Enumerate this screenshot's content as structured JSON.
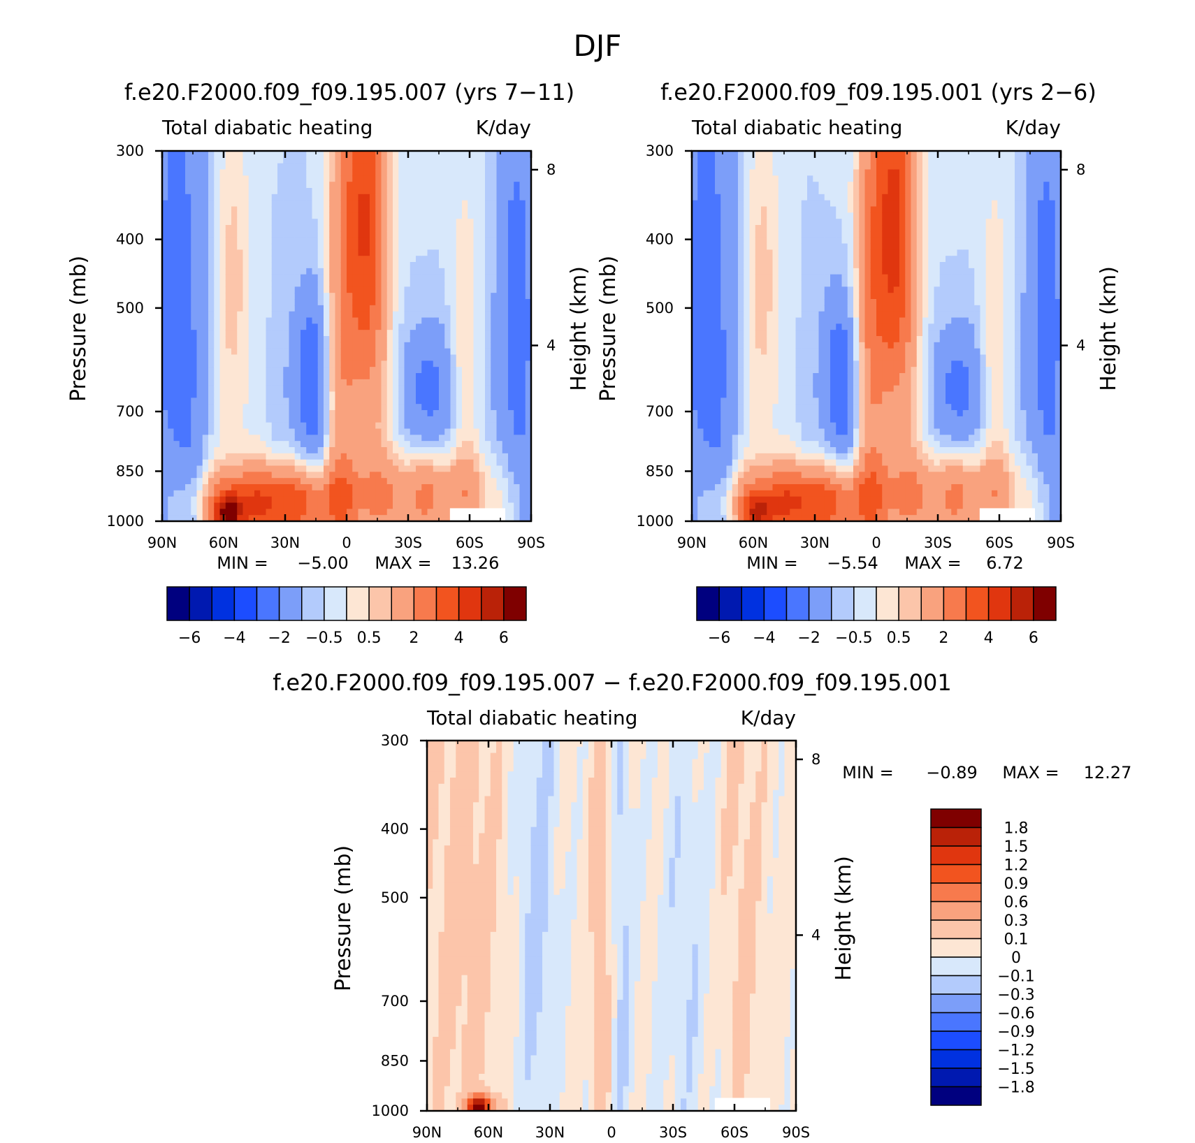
{
  "figure_title": "DJF",
  "chart_data": [
    {
      "type": "heatmap",
      "panel_title": "f.e20.F2000.f09_f09.195.007 (yrs 7−11)",
      "variable_label": "Total diabatic heating",
      "units_label": "K/day",
      "ylabel": "Pressure (mb)",
      "y2label": "Height (km)",
      "x_ticks": [
        "90N",
        "60N",
        "30N",
        "0",
        "30S",
        "60S",
        "90S"
      ],
      "x_values": [
        90,
        60,
        30,
        0,
        -30,
        -60,
        -90
      ],
      "y_ticks": [
        300,
        400,
        500,
        700,
        850,
        1000
      ],
      "y2_ticks": [
        8,
        4
      ],
      "ylim": [
        1000,
        300
      ],
      "min_label": "MIN =",
      "min_value": "−5.00",
      "max_label": "MAX =",
      "max_value": "13.26",
      "colorbar_orientation": "horizontal",
      "colorbar_labels": [
        "−6",
        "−4",
        "−2",
        "−0.5",
        "0.5",
        "2",
        "4",
        "6"
      ],
      "levels": [
        -6,
        -5,
        -4,
        -3,
        -2,
        -1,
        -0.5,
        0,
        0.5,
        1,
        2,
        3,
        4,
        5,
        6
      ]
    },
    {
      "type": "heatmap",
      "panel_title": "f.e20.F2000.f09_f09.195.001 (yrs 2−6)",
      "variable_label": "Total diabatic heating",
      "units_label": "K/day",
      "ylabel": "Pressure (mb)",
      "y2label": "Height (km)",
      "x_ticks": [
        "90N",
        "60N",
        "30N",
        "0",
        "30S",
        "60S",
        "90S"
      ],
      "x_values": [
        90,
        60,
        30,
        0,
        -30,
        -60,
        -90
      ],
      "y_ticks": [
        300,
        400,
        500,
        700,
        850,
        1000
      ],
      "y2_ticks": [
        8,
        4
      ],
      "ylim": [
        1000,
        300
      ],
      "min_label": "MIN =",
      "min_value": "−5.54",
      "max_label": "MAX =",
      "max_value": "6.72",
      "colorbar_orientation": "horizontal",
      "colorbar_labels": [
        "−6",
        "−4",
        "−2",
        "−0.5",
        "0.5",
        "2",
        "4",
        "6"
      ],
      "levels": [
        -6,
        -5,
        -4,
        -3,
        -2,
        -1,
        -0.5,
        0,
        0.5,
        1,
        2,
        3,
        4,
        5,
        6
      ]
    },
    {
      "type": "heatmap",
      "panel_title": "f.e20.F2000.f09_f09.195.007 − f.e20.F2000.f09_f09.195.001",
      "variable_label": "Total diabatic heating",
      "units_label": "K/day",
      "ylabel": "Pressure (mb)",
      "y2label": "Height (km)",
      "x_ticks": [
        "90N",
        "60N",
        "30N",
        "0",
        "30S",
        "60S",
        "90S"
      ],
      "x_values": [
        90,
        60,
        30,
        0,
        -30,
        -60,
        -90
      ],
      "y_ticks": [
        300,
        400,
        500,
        700,
        850,
        1000
      ],
      "y2_ticks": [
        8,
        4
      ],
      "ylim": [
        1000,
        300
      ],
      "min_label": "MIN =",
      "min_value": "−0.89",
      "max_label": "MAX =",
      "max_value": "12.27",
      "colorbar_orientation": "vertical",
      "colorbar_labels": [
        "1.8",
        "1.5",
        "1.2",
        "0.9",
        "0.6",
        "0.3",
        "0.1",
        "0",
        "−0.1",
        "−0.3",
        "−0.6",
        "−0.9",
        "−1.2",
        "−1.5",
        "−1.8"
      ],
      "levels": [
        1.8,
        1.5,
        1.2,
        0.9,
        0.6,
        0.3,
        0.1,
        0,
        -0.1,
        -0.3,
        -0.6,
        -0.9,
        -1.2,
        -1.5,
        -1.8
      ]
    }
  ],
  "colormap": [
    "#00007f",
    "#0019b0",
    "#0031e0",
    "#1c4dff",
    "#4a76ff",
    "#7c9ef9",
    "#b3cbfc",
    "#d8e8fb",
    "#fde6d4",
    "#fcc5aa",
    "#f9a27e",
    "#f77a4d",
    "#f2541f",
    "#e0360f",
    "#ba2208",
    "#7f0000"
  ]
}
